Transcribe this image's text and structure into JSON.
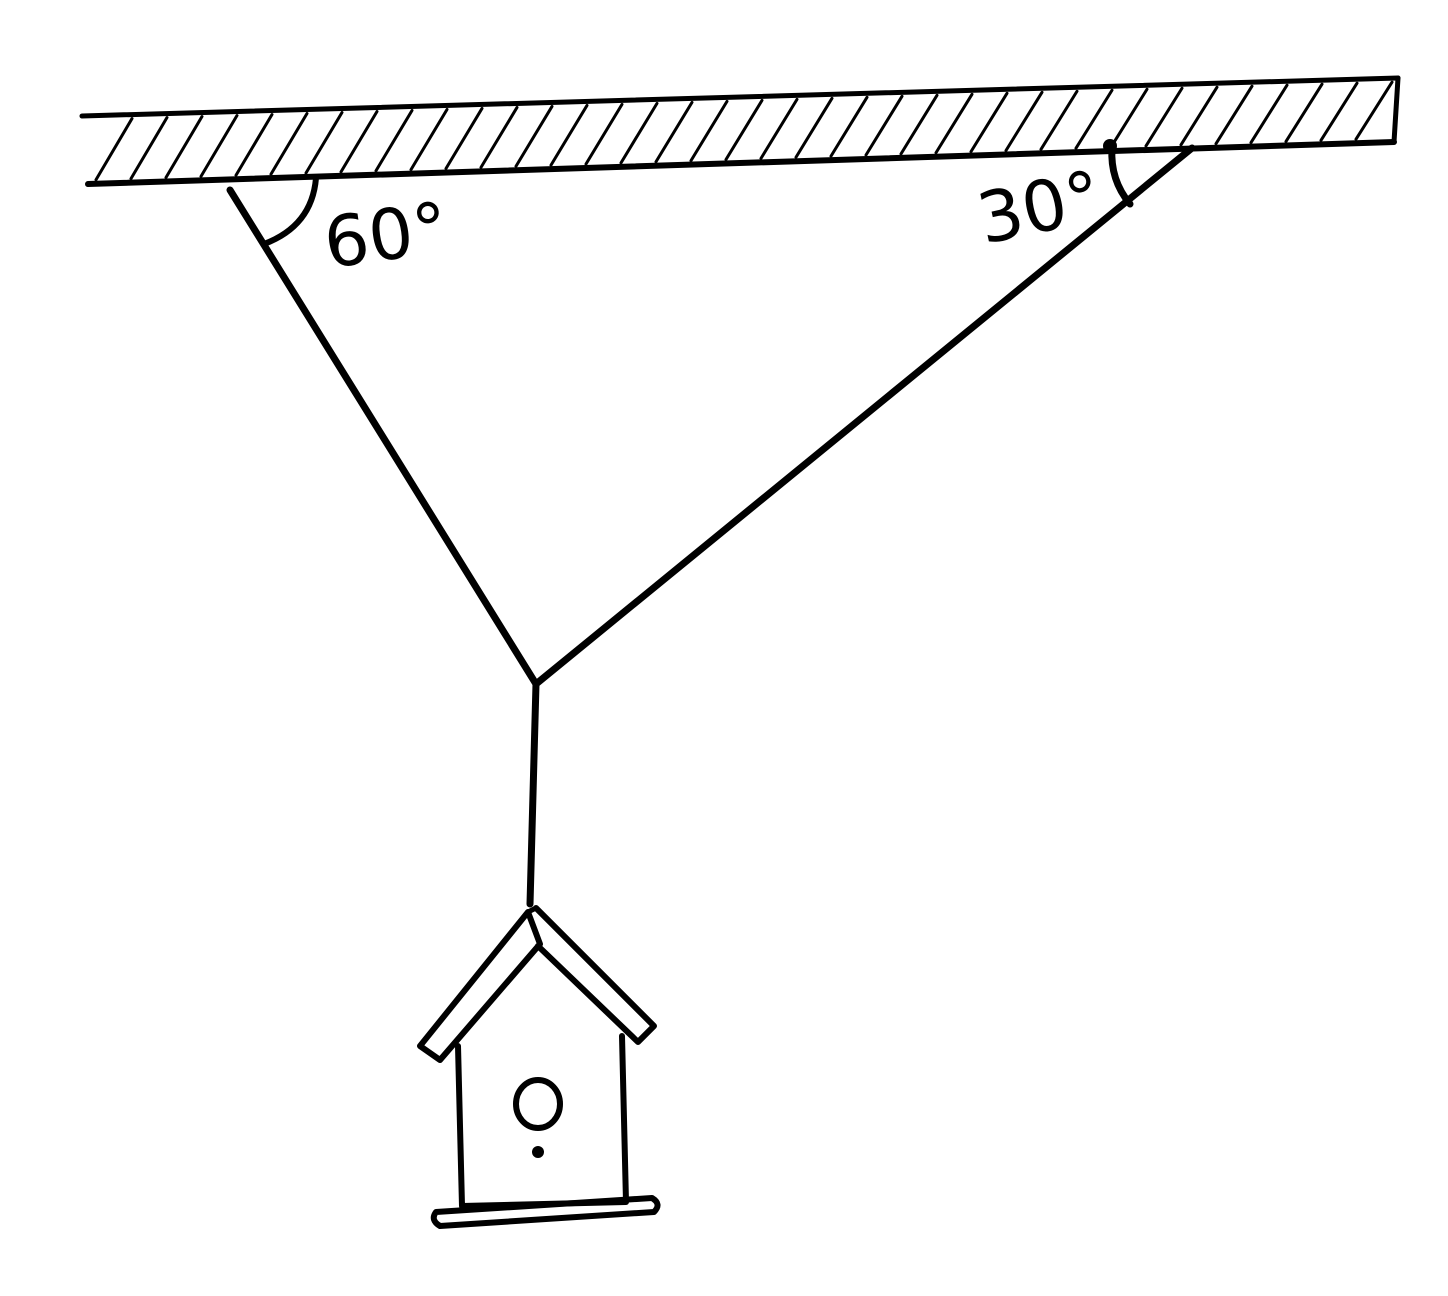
{
  "angles": {
    "left": {
      "label": "60°",
      "degrees": 60
    },
    "right": {
      "label": "30°",
      "degrees": 30
    }
  },
  "colors": {
    "ink": "#000000",
    "background": "#ffffff"
  }
}
